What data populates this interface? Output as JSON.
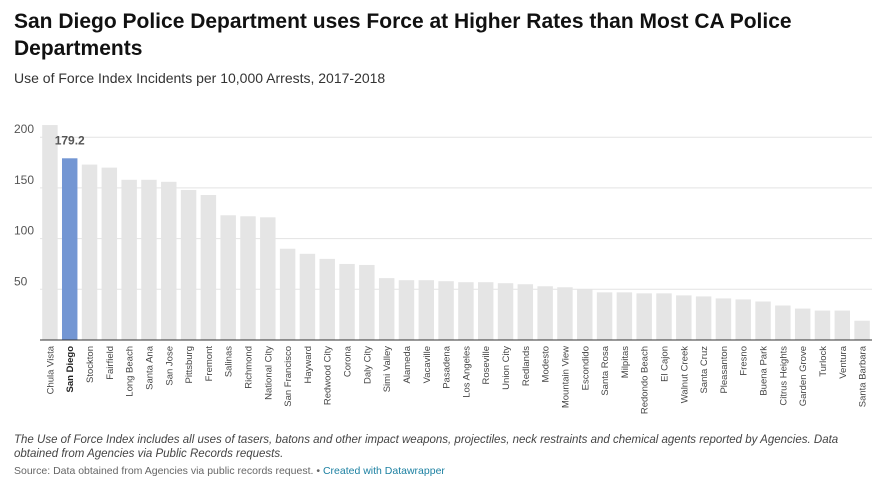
{
  "header": {
    "title": "San Diego Police Department uses Force at Higher Rates than Most CA Police Departments",
    "subtitle": "Use of Force Index Incidents per 10,000 Arrests, 2017-2018"
  },
  "footer": {
    "note": "The Use of Force Index includes all uses of tasers, batons and other impact weapons, projectiles, neck restraints and chemical agents reported by Agencies. Data obtained from Agencies via Public Records requests.",
    "source": "Source: Data obtained from Agencies via public records request.",
    "separator": " • ",
    "credit": "Created with Datawrapper"
  },
  "colors": {
    "highlight": "#7396d3",
    "bar": "#e5e5e5",
    "grid": "#e3e3e3",
    "axis": "#333333"
  },
  "chart_data": {
    "type": "bar",
    "categories": [
      "Chula Vista",
      "San Diego",
      "Stockton",
      "Fairfield",
      "Long Beach",
      "Santa Ana",
      "San Jose",
      "Pittsburg",
      "Fremont",
      "Salinas",
      "Richmond",
      "National City",
      "San Francisco",
      "Hayward",
      "Redwood City",
      "Corona",
      "Daly City",
      "Simi Valley",
      "Alameda",
      "Vacaville",
      "Pasadena",
      "Los Angeles",
      "Roseville",
      "Union City",
      "Redlands",
      "Modesto",
      "Mountain View",
      "Escondido",
      "Santa Rosa",
      "Milpitas",
      "Redondo Beach",
      "El Cajon",
      "Walnut Creek",
      "Santa Cruz",
      "Pleasanton",
      "Fresno",
      "Buena Park",
      "Citrus Heights",
      "Garden Grove",
      "Turlock",
      "Ventura",
      "Santa Barbara"
    ],
    "values": [
      212,
      179.2,
      173,
      170,
      158,
      158,
      156,
      148,
      143,
      123,
      122,
      121,
      90,
      85,
      80,
      75,
      74,
      61,
      59,
      59,
      58,
      57,
      57,
      56,
      55,
      53,
      52,
      50,
      47,
      47,
      46,
      46,
      44,
      43,
      41,
      40,
      38,
      34,
      31,
      29,
      29,
      19
    ],
    "highlight_category": "San Diego",
    "highlight_label": "179.2",
    "yticks": [
      50,
      100,
      150,
      200
    ],
    "ylim": [
      0,
      215
    ],
    "grid": true,
    "legend": "none"
  }
}
